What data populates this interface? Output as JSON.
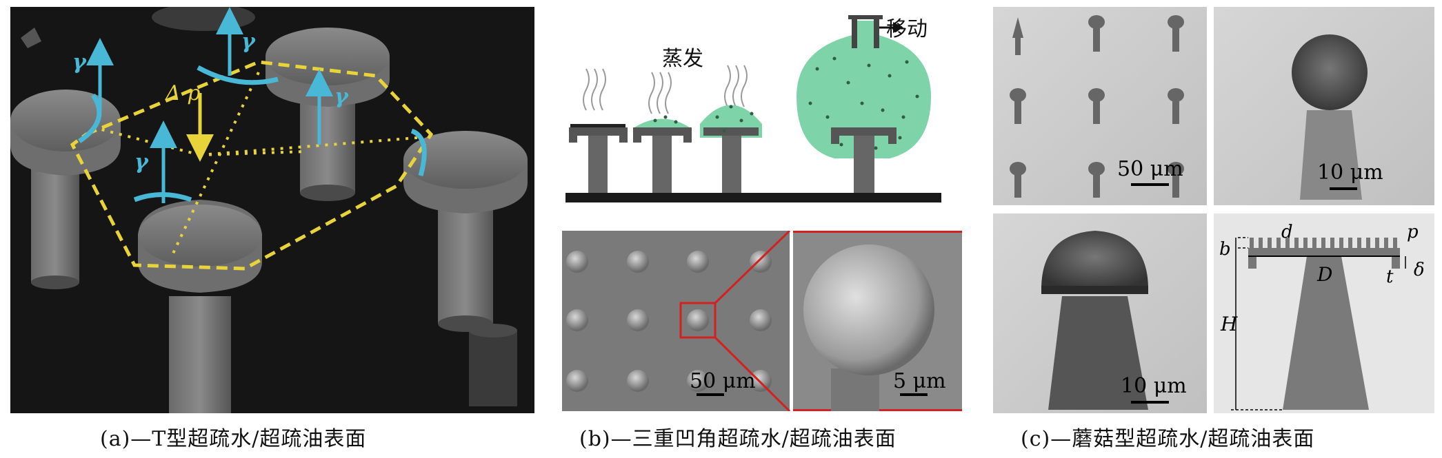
{
  "panel_a": {
    "caption": "(a)—T型超疏水/超疏油表面",
    "gamma_label": "γ",
    "pressure_label": "Δ p"
  },
  "panel_b": {
    "caption": "(b)—三重凹角超疏水/超疏油表面",
    "evaporate_label": "蒸发",
    "move_label": "移动",
    "scale_left": "50 μm",
    "scale_right": "5 μm"
  },
  "panel_c": {
    "caption": "(c)—蘑菇型超疏水/超疏油表面",
    "scale_top_left": "50 μm",
    "scale_top_right": "10 μm",
    "scale_bottom_left": "10 μm",
    "schematic_labels": {
      "b": "b",
      "d": "d",
      "p": "p",
      "D": "D",
      "t": "t",
      "delta": "δ",
      "H": "H"
    }
  },
  "colors": {
    "gamma": "#49b7d6",
    "dashed": "#e8d33b",
    "droplet": "#7fd3a8",
    "scale_red": "#d32020"
  }
}
